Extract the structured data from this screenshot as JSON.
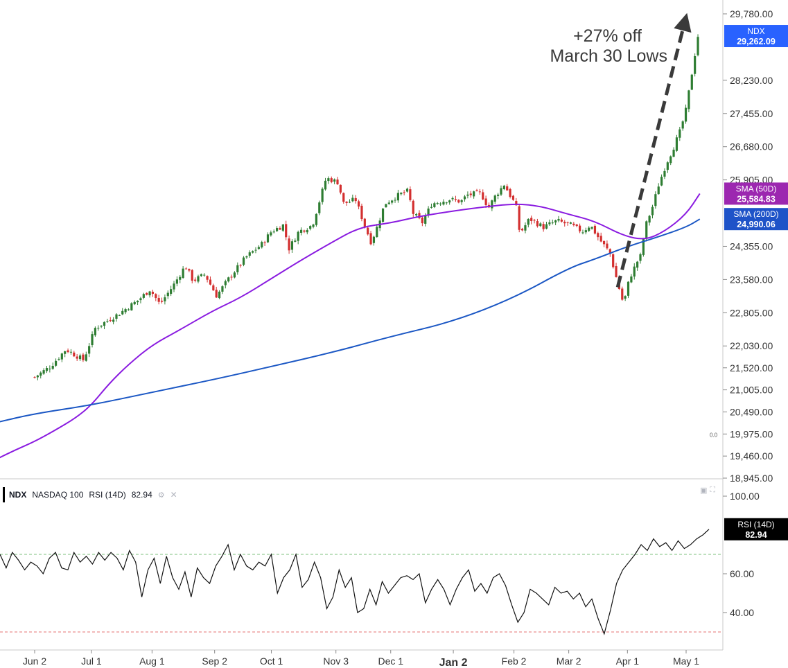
{
  "chart_data": {
    "type": "candlestick",
    "symbol": "NDX",
    "price_axis": {
      "ticks": [
        "29,780.00",
        "28,230.00",
        "27,455.00",
        "26,680.00",
        "25,905.00",
        "24,355.00",
        "23,580.00",
        "22,805.00",
        "22,030.00",
        "21,520.00",
        "21,005.00",
        "20,490.00",
        "19,975.00",
        "19,460.00",
        "18,945.00"
      ],
      "tick_values": [
        29780,
        28230,
        27455,
        26680,
        25905,
        24355,
        23580,
        22805,
        22030,
        21520,
        21005,
        20490,
        19975,
        19460,
        18945
      ],
      "ylim": [
        18945,
        29780
      ],
      "extra_label": "0.0"
    },
    "x_axis": {
      "labels": [
        "Jun 2",
        "Jul 1",
        "Aug 1",
        "Sep 2",
        "Oct 1",
        "Nov 3",
        "Dec 1",
        "Jan 2",
        "Feb 2",
        "Mar 2",
        "Apr 1",
        "May 1"
      ],
      "bold_label": "Jan 2"
    },
    "price_tags": [
      {
        "title": "NDX",
        "value": "29,262.09",
        "color": "#2962ff",
        "y": 29262.09
      },
      {
        "title": "SMA (50D)",
        "value": "25,584.83",
        "color": "#9c27b0",
        "y": 25584.83
      },
      {
        "title": "SMA (200D)",
        "value": "24,990.06",
        "color": "#1e53c8",
        "y": 24990.06
      }
    ],
    "annotation": {
      "lines": [
        "+27% off",
        "March 30 Lows"
      ]
    },
    "trend_arrow": {
      "from": {
        "x": "Mar 27",
        "y": 23400
      },
      "to": {
        "x": "May 5",
        "y": 29800
      }
    },
    "close_path": [
      {
        "x": "Jun 2",
        "y": 21300
      },
      {
        "x": "Jun 10",
        "y": 21550
      },
      {
        "x": "Jun 18",
        "y": 21950
      },
      {
        "x": "Jun 27",
        "y": 21700
      },
      {
        "x": "Jul 3",
        "y": 22450
      },
      {
        "x": "Jul 15",
        "y": 22780
      },
      {
        "x": "Jul 25",
        "y": 23100
      },
      {
        "x": "Jul 31",
        "y": 23350
      },
      {
        "x": "Aug 5",
        "y": 23000
      },
      {
        "x": "Aug 12",
        "y": 23450
      },
      {
        "x": "Aug 18",
        "y": 23900
      },
      {
        "x": "Aug 22",
        "y": 23550
      },
      {
        "x": "Aug 28",
        "y": 23700
      },
      {
        "x": "Sep 3",
        "y": 23200
      },
      {
        "x": "Sep 10",
        "y": 23650
      },
      {
        "x": "Sep 18",
        "y": 24100
      },
      {
        "x": "Sep 26",
        "y": 24400
      },
      {
        "x": "Oct 1",
        "y": 24700
      },
      {
        "x": "Oct 7",
        "y": 24850
      },
      {
        "x": "Oct 10",
        "y": 24300
      },
      {
        "x": "Oct 15",
        "y": 24700
      },
      {
        "x": "Oct 22",
        "y": 24850
      },
      {
        "x": "Oct 29",
        "y": 25950
      },
      {
        "x": "Nov 4",
        "y": 25850
      },
      {
        "x": "Nov 7",
        "y": 25350
      },
      {
        "x": "Nov 13",
        "y": 25450
      },
      {
        "x": "Nov 18",
        "y": 24800
      },
      {
        "x": "Nov 21",
        "y": 24450
      },
      {
        "x": "Nov 24",
        "y": 24800
      },
      {
        "x": "Nov 28",
        "y": 25350
      },
      {
        "x": "Dec 5",
        "y": 25550
      },
      {
        "x": "Dec 10",
        "y": 25650
      },
      {
        "x": "Dec 12",
        "y": 25150
      },
      {
        "x": "Dec 17",
        "y": 24900
      },
      {
        "x": "Dec 22",
        "y": 25350
      },
      {
        "x": "Dec 31",
        "y": 25450
      },
      {
        "x": "Jan 6",
        "y": 25400
      },
      {
        "x": "Jan 9",
        "y": 25550
      },
      {
        "x": "Jan 16",
        "y": 25600
      },
      {
        "x": "Jan 20",
        "y": 25250
      },
      {
        "x": "Jan 23",
        "y": 25500
      },
      {
        "x": "Jan 28",
        "y": 25800
      },
      {
        "x": "Feb 3",
        "y": 25300
      },
      {
        "x": "Feb 5",
        "y": 24650
      },
      {
        "x": "Feb 10",
        "y": 25000
      },
      {
        "x": "Feb 17",
        "y": 24800
      },
      {
        "x": "Feb 24",
        "y": 24950
      },
      {
        "x": "Mar 3",
        "y": 24850
      },
      {
        "x": "Mar 9",
        "y": 24700
      },
      {
        "x": "Mar 13",
        "y": 24850
      },
      {
        "x": "Mar 18",
        "y": 24500
      },
      {
        "x": "Mar 23",
        "y": 24200
      },
      {
        "x": "Mar 27",
        "y": 23500
      },
      {
        "x": "Mar 30",
        "y": 23000
      },
      {
        "x": "Apr 2",
        "y": 23600
      },
      {
        "x": "Apr 6",
        "y": 24000
      },
      {
        "x": "Apr 8",
        "y": 24150
      },
      {
        "x": "Apr 10",
        "y": 24800
      },
      {
        "x": "Apr 14",
        "y": 25300
      },
      {
        "x": "Apr 17",
        "y": 25800
      },
      {
        "x": "Apr 21",
        "y": 26300
      },
      {
        "x": "Apr 24",
        "y": 26600
      },
      {
        "x": "Apr 28",
        "y": 27050
      },
      {
        "x": "May 1",
        "y": 27550
      },
      {
        "x": "May 5",
        "y": 28700
      },
      {
        "x": "May 7",
        "y": 29262.09
      }
    ],
    "series": [
      {
        "name": "SMA (50D)",
        "color": "#8a1be0",
        "points": [
          {
            "x": "May 14",
            "y": 19400
          },
          {
            "x": "May 23",
            "y": 19600
          },
          {
            "x": "Jun 2",
            "y": 19800
          },
          {
            "x": "Jun 12",
            "y": 20050
          },
          {
            "x": "Jun 23",
            "y": 20350
          },
          {
            "x": "Jul 1",
            "y": 20650
          },
          {
            "x": "Jul 10",
            "y": 21150
          },
          {
            "x": "Jul 20",
            "y": 21600
          },
          {
            "x": "Aug 1",
            "y": 22050
          },
          {
            "x": "Aug 15",
            "y": 22400
          },
          {
            "x": "Sep 1",
            "y": 22850
          },
          {
            "x": "Sep 15",
            "y": 23150
          },
          {
            "x": "Oct 1",
            "y": 23600
          },
          {
            "x": "Oct 15",
            "y": 24000
          },
          {
            "x": "Nov 1",
            "y": 24450
          },
          {
            "x": "Nov 15",
            "y": 24800
          },
          {
            "x": "Dec 1",
            "y": 24900
          },
          {
            "x": "Dec 15",
            "y": 25050
          },
          {
            "x": "Jan 2",
            "y": 25180
          },
          {
            "x": "Jan 15",
            "y": 25260
          },
          {
            "x": "Feb 2",
            "y": 25350
          },
          {
            "x": "Feb 15",
            "y": 25300
          },
          {
            "x": "Mar 2",
            "y": 25100
          },
          {
            "x": "Mar 15",
            "y": 24950
          },
          {
            "x": "Mar 30",
            "y": 24600
          },
          {
            "x": "Apr 10",
            "y": 24500
          },
          {
            "x": "Apr 20",
            "y": 24700
          },
          {
            "x": "May 1",
            "y": 25100
          },
          {
            "x": "May 8",
            "y": 25584.83
          }
        ]
      },
      {
        "name": "SMA (200D)",
        "color": "#1b57c4",
        "points": [
          {
            "x": "May 14",
            "y": 20250
          },
          {
            "x": "Jun 2",
            "y": 20450
          },
          {
            "x": "Jul 1",
            "y": 20650
          },
          {
            "x": "Aug 1",
            "y": 20950
          },
          {
            "x": "Sep 2",
            "y": 21250
          },
          {
            "x": "Oct 1",
            "y": 21550
          },
          {
            "x": "Nov 3",
            "y": 21900
          },
          {
            "x": "Dec 1",
            "y": 22250
          },
          {
            "x": "Jan 2",
            "y": 22600
          },
          {
            "x": "Feb 2",
            "y": 23150
          },
          {
            "x": "Mar 2",
            "y": 23850
          },
          {
            "x": "Mar 15",
            "y": 24050
          },
          {
            "x": "Apr 1",
            "y": 24350
          },
          {
            "x": "Apr 15",
            "y": 24550
          },
          {
            "x": "May 1",
            "y": 24800
          },
          {
            "x": "May 8",
            "y": 24990.06
          }
        ]
      }
    ],
    "rsi": {
      "legend": {
        "symbol": "NDX",
        "name": "NASDAQ 100",
        "study": "RSI (14D)",
        "value": "82.94"
      },
      "axis_ticks": [
        "100.00",
        "60.00",
        "40.00"
      ],
      "tick_values": [
        100,
        60,
        40
      ],
      "partial_tick": "80",
      "ylim": [
        20,
        104
      ],
      "overbought": 70,
      "oversold": 30,
      "tag": {
        "title": "RSI (14D)",
        "value": "82.94",
        "y": 82.94
      },
      "values": [
        70,
        63,
        71,
        67,
        62,
        66,
        64,
        60,
        68,
        71,
        63,
        62,
        71,
        66,
        69,
        65,
        71,
        67,
        71,
        68,
        62,
        72,
        66,
        48,
        62,
        68,
        55,
        69,
        58,
        52,
        61,
        48,
        63,
        58,
        55,
        64,
        69,
        75,
        62,
        70,
        64,
        62,
        66,
        64,
        70,
        50,
        58,
        62,
        70,
        53,
        57,
        66,
        58,
        42,
        48,
        62,
        53,
        58,
        40,
        42,
        52,
        44,
        56,
        50,
        54,
        58,
        59,
        57,
        60,
        45,
        52,
        57,
        52,
        44,
        52,
        58,
        62,
        51,
        55,
        50,
        58,
        60,
        54,
        44,
        35,
        40,
        52,
        50,
        47,
        44,
        53,
        50,
        51,
        47,
        50,
        43,
        47,
        37,
        29,
        41,
        55,
        62,
        66,
        70,
        75,
        72,
        78,
        74,
        76,
        72,
        77,
        73,
        75,
        78,
        80,
        82.94
      ]
    }
  }
}
